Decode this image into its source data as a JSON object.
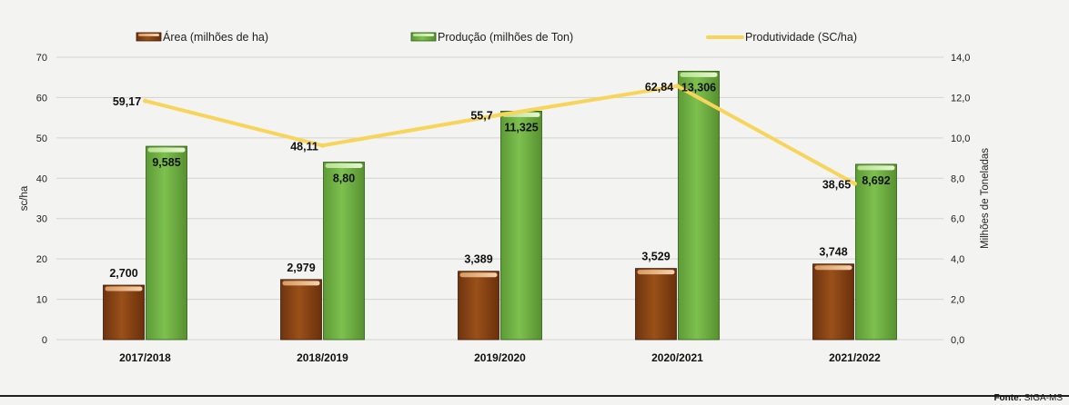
{
  "chart_data": {
    "type": "bar",
    "categories": [
      "2017/2018",
      "2018/2019",
      "2019/2020",
      "2020/2021",
      "2021/2022"
    ],
    "series": [
      {
        "name": "Área (milhões de ha)",
        "kind": "bar",
        "axis": "right",
        "values": [
          2.7,
          2.979,
          3.389,
          3.529,
          3.748
        ],
        "labels": [
          "2,700",
          "2,979",
          "3,389",
          "3,529",
          "3,748"
        ],
        "color": "#8b4513"
      },
      {
        "name": "Produção (milhões de Ton)",
        "kind": "bar",
        "axis": "right",
        "values": [
          9.585,
          8.8,
          11.325,
          13.306,
          8.692
        ],
        "labels": [
          "9,585",
          "8,80",
          "11,325",
          "13,306",
          "8,692"
        ],
        "color": "#6fb043"
      },
      {
        "name": "Produtividade (SC/ha)",
        "kind": "line",
        "axis": "left",
        "values": [
          59.17,
          48.11,
          55.7,
          62.84,
          38.65
        ],
        "labels": [
          "59,17",
          "48,11",
          "55,7",
          "62,84",
          "38,65"
        ],
        "color": "#f7d45a"
      }
    ],
    "ylabel": "sc/ha",
    "ylim": [
      0,
      70
    ],
    "yticks": [
      "0",
      "10",
      "20",
      "30",
      "40",
      "50",
      "60",
      "70"
    ],
    "y2label": "Milhões de Toneladas",
    "y2lim": [
      0,
      14
    ],
    "y2ticks": [
      "0,0",
      "2,0",
      "4,0",
      "6,0",
      "8,0",
      "10,0",
      "12,0",
      "14,0"
    ],
    "grid": true,
    "legend_position": "top"
  },
  "source": {
    "label": "Fonte:",
    "value": "SIGA-MS"
  }
}
